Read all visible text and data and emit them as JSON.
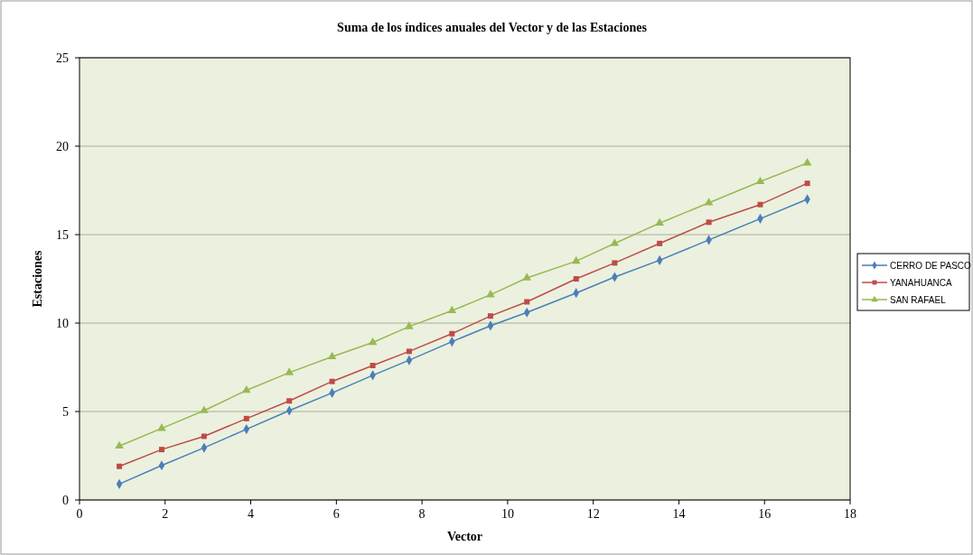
{
  "chart_data": {
    "type": "line",
    "title": "Suma de los índices anuales del Vector y de las Estaciones",
    "xlabel": "Vector",
    "ylabel": "Estaciones",
    "x": [
      0.93,
      1.92,
      2.91,
      3.9,
      4.9,
      5.9,
      6.85,
      7.7,
      8.7,
      9.6,
      10.45,
      11.6,
      12.5,
      13.55,
      14.7,
      15.9,
      17.0
    ],
    "series": [
      {
        "name": "CERRO DE PASCO",
        "color": "#4a7ebb",
        "marker": "diamond",
        "values": [
          0.9,
          1.95,
          2.95,
          4.0,
          5.05,
          6.05,
          7.05,
          7.9,
          8.95,
          9.85,
          10.6,
          11.7,
          12.6,
          13.55,
          14.7,
          15.9,
          17.0
        ]
      },
      {
        "name": "YANAHUANCA",
        "color": "#be4b48",
        "marker": "square",
        "values": [
          1.9,
          2.85,
          3.6,
          4.6,
          5.6,
          6.7,
          7.6,
          8.4,
          9.4,
          10.4,
          11.2,
          12.5,
          13.4,
          14.5,
          15.7,
          16.7,
          17.9
        ]
      },
      {
        "name": "SAN RAFAEL",
        "color": "#98b954",
        "marker": "triangle",
        "values": [
          3.05,
          4.05,
          5.05,
          6.2,
          7.2,
          8.1,
          8.9,
          9.8,
          10.7,
          11.6,
          12.55,
          13.5,
          14.5,
          15.65,
          16.8,
          18.0,
          19.05
        ]
      }
    ],
    "xlim": [
      0,
      18
    ],
    "xticks": [
      0,
      2,
      4,
      6,
      8,
      10,
      12,
      14,
      16,
      18
    ],
    "ylim": [
      0,
      25
    ],
    "yticks": [
      0,
      5,
      10,
      15,
      20,
      25
    ],
    "grid": "y",
    "legend": "right"
  }
}
